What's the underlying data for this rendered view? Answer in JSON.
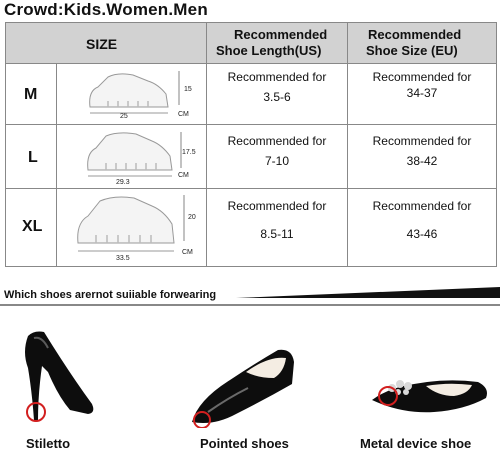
{
  "header": {
    "crowd": "Crowd:Kids.Women.Men"
  },
  "table": {
    "col_size": "SIZE",
    "col_length_line1": "Recommended",
    "col_length_line2": "Shoe Length(US)",
    "col_size_line1": "Recommended",
    "col_size_line2": "Shoe Size (EU)",
    "rows": [
      {
        "size": "M",
        "length_label": "Recommended for",
        "length": "3.5-6",
        "eu_label": "Recommended for",
        "eu": "34-37",
        "height": "15",
        "width": "25",
        "unit": "CM"
      },
      {
        "size": "L",
        "length_label": "Recommended for",
        "length": "7-10",
        "eu_label": "Recommended for",
        "eu": "38-42",
        "height": "17.5",
        "width": "29.3",
        "unit": "CM"
      },
      {
        "size": "XL",
        "length_label": "Recommended for",
        "length": "8.5-11",
        "eu_label": "Recommended for",
        "eu": "43-46",
        "height": "20",
        "width": "33.5",
        "unit": "CM"
      }
    ]
  },
  "banner": {
    "text": "Which shoes arernot suiiable forwearing"
  },
  "examples": [
    {
      "label": "Stiletto"
    },
    {
      "label": "Pointed shoes"
    },
    {
      "label": "Metal device shoe"
    }
  ],
  "colors": {
    "header_bg": "#d2d2d2",
    "marker": "#d21f1f",
    "banner": "#111111"
  }
}
